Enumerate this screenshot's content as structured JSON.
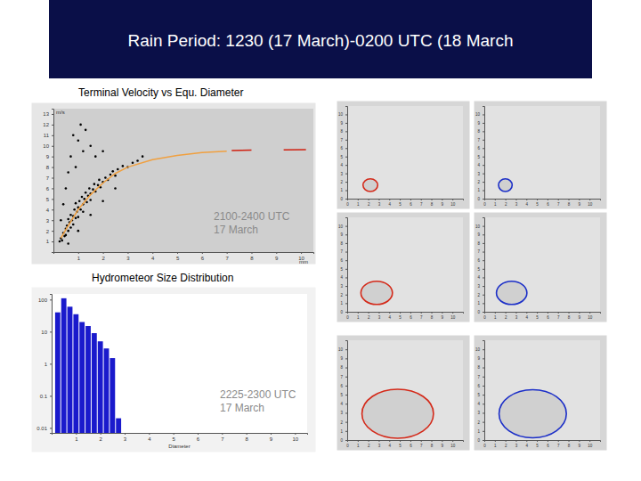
{
  "slide": {
    "title": "Rain Period: 1230 (17 March)-0200 UTC (18 March"
  },
  "chart_data": [
    {
      "type": "scatter",
      "title": "Terminal Velocity vs Equ. Diameter",
      "x_label": "mm",
      "y_label": "m/s",
      "annotations": [
        "2100-2400 UTC",
        "17 March"
      ],
      "xlim": [
        0,
        10.5
      ],
      "xticks": [
        1,
        2,
        3,
        4,
        5,
        6,
        7,
        8,
        9,
        10
      ],
      "ylim": [
        0,
        13.5
      ],
      "yticks": [
        1,
        2,
        3,
        4,
        5,
        6,
        7,
        8,
        9,
        10,
        11,
        12,
        13
      ],
      "series": [
        {
          "type": "scatter",
          "color": "#000000",
          "marker": "circle",
          "x": [
            0.25,
            0.3,
            0.35,
            0.4,
            0.45,
            0.5,
            0.5,
            0.55,
            0.6,
            0.6,
            0.65,
            0.7,
            0.7,
            0.75,
            0.8,
            0.8,
            0.85,
            0.9,
            0.9,
            0.95,
            1.0,
            1.0,
            1.05,
            1.1,
            1.15,
            1.2,
            1.2,
            1.25,
            1.3,
            1.35,
            1.4,
            1.45,
            1.5,
            1.5,
            1.6,
            1.65,
            1.7,
            1.8,
            1.85,
            1.9,
            2.0,
            2.1,
            2.2,
            2.3,
            2.4,
            2.5,
            2.6,
            2.8,
            3.0,
            3.2,
            3.4,
            0.4,
            0.5,
            0.6,
            0.7,
            0.8,
            0.9,
            1.0,
            1.1,
            1.2,
            1.3,
            1.5,
            1.7,
            2.0,
            0.6,
            1.0,
            1.5,
            2.0,
            2.5,
            0.3,
            3.6
          ],
          "values": [
            1.0,
            1.3,
            1.1,
            1.8,
            1.5,
            2.2,
            1.6,
            2.5,
            2.0,
            3.1,
            2.8,
            2.3,
            3.5,
            3.0,
            3.4,
            2.6,
            4.0,
            3.2,
            4.6,
            3.8,
            4.2,
            3.3,
            4.8,
            4.0,
            5.2,
            4.5,
            3.8,
            5.0,
            5.6,
            4.7,
            5.3,
            6.0,
            5.5,
            4.9,
            5.9,
            6.4,
            5.7,
            6.3,
            6.8,
            6.1,
            6.6,
            7.0,
            6.8,
            7.3,
            7.6,
            7.2,
            7.8,
            8.1,
            8.0,
            8.4,
            8.6,
            4.5,
            6.0,
            7.5,
            9.0,
            11.0,
            8.0,
            10.5,
            12.0,
            9.5,
            11.5,
            10.0,
            9.0,
            9.5,
            0.8,
            2.0,
            3.5,
            4.8,
            6.0,
            3.0,
            9.0
          ]
        },
        {
          "type": "line",
          "color": "#f0a040",
          "line_style": "solid",
          "x": [
            0.3,
            0.5,
            1.0,
            1.5,
            2.0,
            2.5,
            3.0,
            4.0,
            5.0,
            6.0,
            7.0
          ],
          "values": [
            1.3,
            2.1,
            4.0,
            5.4,
            6.5,
            7.4,
            8.0,
            8.7,
            9.1,
            9.37,
            9.5
          ]
        },
        {
          "type": "line",
          "color": "#d02010",
          "line_style": "solid",
          "x": [
            7.2,
            8.0,
            8.6,
            9.3,
            10.2
          ],
          "values": [
            9.55,
            9.6,
            null,
            9.62,
            9.65
          ]
        }
      ]
    },
    {
      "type": "histogram",
      "title": "Hydrometeor Size Distribution",
      "x_label": "Diameter",
      "log": "y",
      "color": "#1a1acc",
      "annotations": [
        "2225-2300 UTC",
        "17 March"
      ],
      "bins": [
        0.125,
        0.375,
        0.625,
        0.875,
        1.125,
        1.375,
        1.625,
        1.875,
        2.125,
        2.375,
        2.625,
        2.875
      ],
      "values": [
        40,
        110,
        60,
        35,
        20,
        15,
        9,
        5,
        3,
        1.5,
        0.02
      ],
      "xlim": [
        0,
        10.5
      ],
      "xticks": [
        1,
        2,
        3,
        4,
        5,
        6,
        7,
        8,
        9,
        10
      ],
      "ylim": [
        0.007,
        150
      ],
      "yticks": [
        0.01,
        0.1,
        1,
        10,
        100
      ]
    },
    {
      "type": "ellipse",
      "color": "#d42a1a",
      "x": 2.2,
      "y": 1.6,
      "width": 1.4,
      "height": 1.5,
      "xlim": [
        0,
        11
      ],
      "xticks": [
        0,
        1,
        2,
        3,
        4,
        5,
        6,
        7,
        8,
        9,
        10
      ],
      "ylim": [
        0,
        11
      ],
      "yticks": [
        0,
        1,
        2,
        3,
        4,
        5,
        6,
        7,
        8,
        9,
        10
      ]
    },
    {
      "type": "ellipse",
      "color": "#1c2fc8",
      "x": 2.0,
      "y": 1.6,
      "width": 1.3,
      "height": 1.5,
      "xlim": [
        0,
        11
      ],
      "xticks": [
        0,
        1,
        2,
        3,
        4,
        5,
        6,
        7,
        8,
        9,
        10
      ],
      "ylim": [
        0,
        11
      ],
      "yticks": [
        0,
        1,
        2,
        3,
        4,
        5,
        6,
        7,
        8,
        9,
        10
      ]
    },
    {
      "type": "ellipse",
      "color": "#d42a1a",
      "x": 2.8,
      "y": 2.2,
      "width": 3.0,
      "height": 2.7,
      "xlim": [
        0,
        11
      ],
      "xticks": [
        0,
        1,
        2,
        3,
        4,
        5,
        6,
        7,
        8,
        9,
        10
      ],
      "ylim": [
        0,
        11
      ],
      "yticks": [
        0,
        1,
        2,
        3,
        4,
        5,
        6,
        7,
        8,
        9,
        10
      ]
    },
    {
      "type": "ellipse",
      "color": "#1c2fc8",
      "x": 2.6,
      "y": 2.2,
      "width": 2.9,
      "height": 2.7,
      "xlim": [
        0,
        11
      ],
      "xticks": [
        0,
        1,
        2,
        3,
        4,
        5,
        6,
        7,
        8,
        9,
        10
      ],
      "ylim": [
        0,
        11
      ],
      "yticks": [
        0,
        1,
        2,
        3,
        4,
        5,
        6,
        7,
        8,
        9,
        10
      ]
    },
    {
      "type": "ellipse",
      "color": "#d42a1a",
      "x": 4.8,
      "y": 2.9,
      "width": 6.8,
      "height": 5.4,
      "xlim": [
        0,
        11
      ],
      "xticks": [
        0,
        1,
        2,
        3,
        4,
        5,
        6,
        7,
        8,
        9,
        10
      ],
      "ylim": [
        0,
        11
      ],
      "yticks": [
        0,
        1,
        2,
        3,
        4,
        5,
        6,
        7,
        8,
        9,
        10
      ]
    },
    {
      "type": "ellipse",
      "color": "#1c2fc8",
      "x": 4.6,
      "y": 2.9,
      "width": 6.4,
      "height": 5.3,
      "xlim": [
        0,
        11
      ],
      "xticks": [
        0,
        1,
        2,
        3,
        4,
        5,
        6,
        7,
        8,
        9,
        10
      ],
      "ylim": [
        0,
        11
      ],
      "yticks": [
        0,
        1,
        2,
        3,
        4,
        5,
        6,
        7,
        8,
        9,
        10
      ]
    }
  ]
}
